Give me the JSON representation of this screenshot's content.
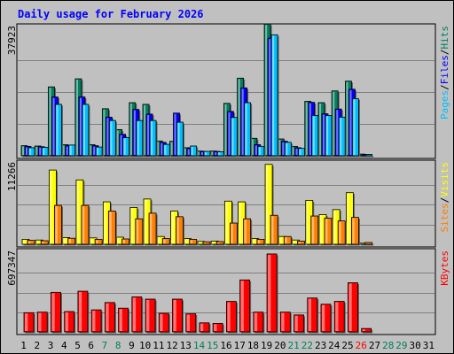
{
  "title": "Daily usage for February 2026",
  "chart_data": {
    "type": "bar",
    "title": "Daily usage for February 2026",
    "categories": [
      "1",
      "2",
      "3",
      "4",
      "5",
      "6",
      "7",
      "8",
      "9",
      "10",
      "11",
      "12",
      "13",
      "14",
      "15",
      "16",
      "17",
      "18",
      "19",
      "20",
      "21",
      "22",
      "23",
      "24",
      "25",
      "26",
      "27",
      "28",
      "29",
      "30",
      "31"
    ],
    "weekend_days": [
      7,
      8,
      14,
      15,
      21,
      22,
      28,
      29
    ],
    "today_day": 26,
    "panels": [
      {
        "name": "hits-files-pages",
        "max_label": "37923",
        "ymax": 37923,
        "legend": [
          "Pages",
          "/",
          "Files",
          "/",
          "Hits"
        ],
        "series": [
          {
            "name": "Hits",
            "color": "#007f5f",
            "values": [
              3000,
              2900,
              20500,
              3300,
              22900,
              3300,
              14000,
              7800,
              15800,
              15300,
              4400,
              4300,
              2400,
              1400,
              1400,
              15600,
              23100,
              5200,
              39200,
              5000,
              2800,
              16200,
              15800,
              19300,
              22200,
              500,
              0,
              0,
              0,
              0,
              0
            ]
          },
          {
            "name": "Files",
            "color": "#0000ff",
            "values": [
              2800,
              2700,
              17500,
              3000,
              17500,
              3000,
              11500,
              6400,
              13800,
              12400,
              4000,
              12700,
              2200,
              1300,
              1300,
              13200,
              20200,
              3300,
              35000,
              4300,
              2400,
              15900,
              12500,
              13900,
              19800,
              400,
              0,
              0,
              0,
              0,
              0
            ]
          },
          {
            "name": "Pages",
            "color": "#00bfff",
            "values": [
              2400,
              2500,
              15300,
              3200,
              15300,
              2600,
              10500,
              5400,
              10500,
              10500,
              3400,
              10000,
              2900,
              1300,
              1200,
              11400,
              15800,
              2800,
              36000,
              4000,
              2200,
              12000,
              12000,
              11500,
              17000,
              400,
              0,
              0,
              0,
              0,
              0
            ]
          }
        ]
      },
      {
        "name": "visits-sites",
        "max_label": "11266",
        "ymax": 11266,
        "legend": [
          "Sites",
          "/",
          "Visits"
        ],
        "series": [
          {
            "name": "Visits",
            "color": "#ffff00",
            "values": [
              700,
              600,
              10500,
              950,
              9100,
              900,
              6000,
              1000,
              5200,
              6400,
              1100,
              4700,
              800,
              400,
              450,
              6100,
              6000,
              800,
              11300,
              1100,
              600,
              6200,
              4200,
              4900,
              7300,
              150,
              0,
              0,
              0,
              0,
              0
            ]
          },
          {
            "name": "Sites",
            "color": "#ff8000",
            "values": [
              550,
              500,
              5500,
              850,
              5500,
              700,
              4700,
              750,
              3600,
              4400,
              800,
              3900,
              700,
              350,
              380,
              3000,
              3600,
              700,
              4100,
              1100,
              450,
              4000,
              3700,
              3300,
              3800,
              250,
              0,
              0,
              0,
              0,
              0
            ]
          }
        ]
      },
      {
        "name": "kbytes",
        "max_label": "697347",
        "ymax": 697347,
        "legend": [
          "KBytes"
        ],
        "series": [
          {
            "name": "KBytes",
            "color": "#ff0000",
            "values": [
              170000,
              175000,
              350000,
              180000,
              360000,
              195000,
              260000,
              210000,
              310000,
              290000,
              165000,
              290000,
              160000,
              80000,
              75000,
              270000,
              460000,
              175000,
              690000,
              175000,
              150000,
              300000,
              245000,
              270000,
              435000,
              30000,
              0,
              0,
              0,
              0,
              0
            ]
          }
        ]
      }
    ]
  }
}
